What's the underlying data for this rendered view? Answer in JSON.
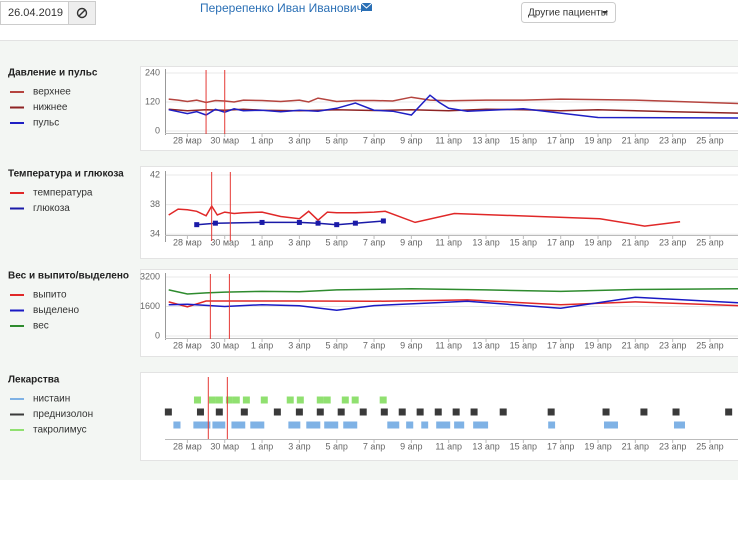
{
  "header": {
    "date": "26.04.2019",
    "patient": "Перерепенко Иван Иванович",
    "button": "Другие пациенты"
  },
  "chart_data": [
    {
      "type": "line",
      "title": "Давление и пульс",
      "ylim": [
        0,
        240
      ],
      "yticks": [
        0,
        120,
        240
      ],
      "xlim": [
        -1.2,
        29.5
      ],
      "xticks": [
        {
          "value": 0,
          "label": "28 мар"
        },
        {
          "value": 2,
          "label": "30 мар"
        },
        {
          "value": 4,
          "label": "1 апр"
        },
        {
          "value": 6,
          "label": "3 апр"
        },
        {
          "value": 8,
          "label": "5 апр"
        },
        {
          "value": 10,
          "label": "7 апр"
        },
        {
          "value": 12,
          "label": "9 апр"
        },
        {
          "value": 14,
          "label": "11 апр"
        },
        {
          "value": 16,
          "label": "13 апр"
        },
        {
          "value": 18,
          "label": "15 апр"
        },
        {
          "value": 20,
          "label": "17 апр"
        },
        {
          "value": 22,
          "label": "19 апр"
        },
        {
          "value": 24,
          "label": "21 апр"
        },
        {
          "value": 26,
          "label": "23 апр"
        },
        {
          "value": 28,
          "label": "25 апр"
        }
      ],
      "markers_x": [
        1,
        2
      ],
      "marker_color": "#e53935",
      "grid": true,
      "series": [
        {
          "name": "верхнее",
          "color": "#b5443f",
          "x": [
            -1,
            -0.5,
            0,
            0.5,
            1,
            1.5,
            2,
            2.5,
            3,
            4,
            5,
            6,
            6.5,
            7,
            8,
            9,
            10,
            11,
            12,
            13,
            14,
            16,
            18,
            20,
            24,
            29.5
          ],
          "values": [
            132,
            128,
            122,
            128,
            118,
            126,
            124,
            120,
            128,
            126,
            122,
            128,
            120,
            136,
            122,
            126,
            126,
            124,
            140,
            128,
            125,
            128,
            128,
            132,
            128,
            114
          ]
        },
        {
          "name": "нижнее",
          "color": "#8e2323",
          "x": [
            -1,
            0,
            1,
            2,
            3,
            4,
            6,
            8,
            10,
            12,
            14,
            16,
            18,
            20,
            22,
            26,
            29.5
          ],
          "values": [
            90,
            84,
            88,
            86,
            90,
            86,
            84,
            88,
            85,
            88,
            84,
            90,
            88,
            84,
            88,
            80,
            74
          ]
        },
        {
          "name": "пульс",
          "color": "#1f1fc4",
          "x": [
            -1,
            0,
            0.5,
            1,
            1.5,
            2,
            2.5,
            3,
            4,
            5,
            6,
            7,
            8,
            9,
            10,
            11,
            12,
            13,
            13.5,
            14,
            15,
            18,
            22,
            29.5
          ],
          "values": [
            88,
            72,
            80,
            66,
            90,
            78,
            92,
            84,
            86,
            80,
            86,
            82,
            94,
            116,
            86,
            82,
            66,
            148,
            118,
            94,
            82,
            92,
            56,
            54
          ]
        }
      ]
    },
    {
      "type": "line",
      "title": "Температура и глюкоза",
      "ylim": [
        33.5,
        42
      ],
      "yticks": [
        34,
        38,
        42
      ],
      "xlim": [
        -1.2,
        29.5
      ],
      "xticks": [
        {
          "value": 0,
          "label": "28 мар"
        },
        {
          "value": 2,
          "label": "30 мар"
        },
        {
          "value": 4,
          "label": "1 апр"
        },
        {
          "value": 6,
          "label": "3 апр"
        },
        {
          "value": 8,
          "label": "5 апр"
        },
        {
          "value": 10,
          "label": "7 апр"
        },
        {
          "value": 12,
          "label": "9 апр"
        },
        {
          "value": 14,
          "label": "11 апр"
        },
        {
          "value": 16,
          "label": "13 апр"
        },
        {
          "value": 18,
          "label": "15 апр"
        },
        {
          "value": 20,
          "label": "17 апр"
        },
        {
          "value": 22,
          "label": "19 апр"
        },
        {
          "value": 24,
          "label": "21 апр"
        },
        {
          "value": 26,
          "label": "23 апр"
        },
        {
          "value": 28,
          "label": "25 апр"
        }
      ],
      "markers_x": [
        1.3,
        2.3
      ],
      "marker_color": "#e53935",
      "grid": true,
      "series": [
        {
          "name": "температура",
          "color": "#e02828",
          "x": [
            -1,
            -0.5,
            0,
            0.5,
            1,
            1.3,
            1.6,
            2,
            2.5,
            3,
            4,
            5,
            6,
            6.5,
            7,
            7.5,
            8,
            9,
            10,
            10.6,
            12.2,
            14.3,
            22.1,
            24.5,
            26.4
          ],
          "values": [
            36.6,
            37.4,
            37.3,
            37.1,
            36.5,
            37.8,
            36.6,
            37.0,
            36.8,
            36.9,
            37.0,
            36.4,
            36.1,
            37.1,
            35.9,
            37.0,
            36.9,
            36.9,
            37.0,
            37.1,
            35.6,
            36.8,
            36.1,
            35.1,
            35.7
          ]
        },
        {
          "name": "глюкоза",
          "color": "#1a1aa8",
          "markers": true,
          "x": [
            0.5,
            1.5,
            4,
            6,
            7,
            8,
            9,
            10.5
          ],
          "values": [
            35.3,
            35.5,
            35.6,
            35.6,
            35.5,
            35.3,
            35.5,
            35.8
          ]
        }
      ]
    },
    {
      "type": "line",
      "title": "Вес и выпито/выделено",
      "ylim": [
        0,
        3200
      ],
      "yticks": [
        0,
        1600,
        3200
      ],
      "xlim": [
        -1.2,
        29.5
      ],
      "xticks": [
        {
          "value": 0,
          "label": "28 мар"
        },
        {
          "value": 2,
          "label": "30 мар"
        },
        {
          "value": 4,
          "label": "1 апр"
        },
        {
          "value": 6,
          "label": "3 апр"
        },
        {
          "value": 8,
          "label": "5 апр"
        },
        {
          "value": 10,
          "label": "7 апр"
        },
        {
          "value": 12,
          "label": "9 апр"
        },
        {
          "value": 14,
          "label": "11 апр"
        },
        {
          "value": 16,
          "label": "13 апр"
        },
        {
          "value": 18,
          "label": "15 апр"
        },
        {
          "value": 20,
          "label": "17 апр"
        },
        {
          "value": 22,
          "label": "19 апр"
        },
        {
          "value": 24,
          "label": "21 апр"
        },
        {
          "value": 26,
          "label": "23 апр"
        },
        {
          "value": 28,
          "label": "25 апр"
        }
      ],
      "markers_x": [
        1.23,
        2.25
      ],
      "marker_color": "#e53935",
      "grid": true,
      "series": [
        {
          "name": "выпито",
          "color": "#e02828",
          "x": [
            -1,
            0,
            1,
            2,
            6,
            10,
            15,
            20,
            24,
            29.5
          ],
          "values": [
            1850,
            1580,
            1900,
            1900,
            1900,
            1880,
            1960,
            1700,
            1850,
            1650
          ]
        },
        {
          "name": "выделено",
          "color": "#1a1ac4",
          "x": [
            -1,
            0,
            2,
            4,
            6,
            8,
            10,
            15,
            20,
            24,
            29.5
          ],
          "values": [
            1700,
            1720,
            1600,
            1700,
            1640,
            1400,
            1650,
            1880,
            1500,
            2100,
            1800
          ]
        },
        {
          "name": "вес",
          "color": "#2e8b2e",
          "x": [
            -1,
            0,
            1,
            2,
            4,
            6,
            8,
            12,
            16,
            20,
            24,
            29.5
          ],
          "values": [
            2500,
            2280,
            2340,
            2380,
            2420,
            2400,
            2500,
            2560,
            2500,
            2420,
            2520,
            2560
          ]
        }
      ]
    },
    {
      "type": "timeline",
      "title": "Лекарства",
      "xlim": [
        -1.2,
        29.5
      ],
      "xticks": [
        {
          "value": 0,
          "label": "28 мар"
        },
        {
          "value": 2,
          "label": "30 мар"
        },
        {
          "value": 4,
          "label": "1 апр"
        },
        {
          "value": 6,
          "label": "3 апр"
        },
        {
          "value": 8,
          "label": "5 апр"
        },
        {
          "value": 10,
          "label": "7 апр"
        },
        {
          "value": 12,
          "label": "9 апр"
        },
        {
          "value": 14,
          "label": "11 апр"
        },
        {
          "value": 16,
          "label": "13 апр"
        },
        {
          "value": 18,
          "label": "15 апр"
        },
        {
          "value": 20,
          "label": "17 апр"
        },
        {
          "value": 22,
          "label": "19 апр"
        },
        {
          "value": 24,
          "label": "21 апр"
        },
        {
          "value": 26,
          "label": "23 апр"
        },
        {
          "value": 28,
          "label": "25 апр"
        }
      ],
      "markers_x": [
        1.12,
        2.14
      ],
      "marker_color": "#e53935",
      "series": [
        {
          "name": "нистаин",
          "color": "#7fb2e5",
          "intervals": [
            [
              -0.75,
              -0.37
            ],
            [
              0.32,
              1.23
            ],
            [
              1.34,
              2.03
            ],
            [
              2.36,
              3.1
            ],
            [
              3.37,
              4.12
            ],
            [
              5.41,
              6.05
            ],
            [
              6.37,
              7.12
            ],
            [
              7.33,
              8.08
            ],
            [
              8.35,
              9.1
            ],
            [
              10.71,
              11.35
            ],
            [
              11.72,
              12.1
            ],
            [
              12.53,
              12.9
            ],
            [
              13.33,
              14.08
            ],
            [
              14.29,
              14.83
            ],
            [
              15.31,
              16.11
            ],
            [
              19.33,
              19.7
            ],
            [
              22.32,
              23.07
            ],
            [
              26.07,
              26.66
            ]
          ]
        },
        {
          "name": "преднизолон",
          "color": "#3a3a3a",
          "x": [
            -1.02,
            0.7,
            1.71,
            3.05,
            4.82,
            6.0,
            7.12,
            8.24,
            9.42,
            10.55,
            11.51,
            12.47,
            13.44,
            14.4,
            15.36,
            16.92,
            19.49,
            22.43,
            24.46,
            26.18,
            29.0
          ]
        },
        {
          "name": "такролимус",
          "color": "#90e070",
          "x": [
            0.54,
            1.34,
            1.71,
            2.25,
            2.62,
            3.16,
            4.12,
            5.51,
            6.05,
            7.12,
            7.49,
            8.46,
            8.99,
            10.49
          ]
        }
      ]
    }
  ]
}
